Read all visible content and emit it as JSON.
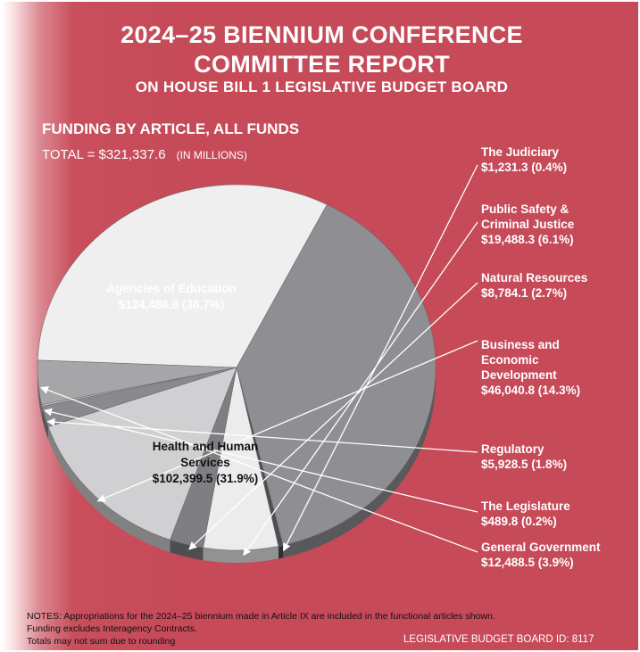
{
  "header": {
    "title_line1": "2024–25 BIENNIUM CONFERENCE",
    "title_line2": "COMMITTEE REPORT",
    "subtitle": "ON HOUSE BILL 1 LEGISLATIVE BUDGET BOARD"
  },
  "section_title": "FUNDING BY ARTICLE, ALL FUNDS",
  "total": {
    "label": "TOTAL = $321,337.6",
    "units": "(IN MILLIONS)"
  },
  "chart_data": {
    "type": "pie",
    "title": "FUNDING BY ARTICLE, ALL FUNDS",
    "units": "(IN MILLIONS)",
    "total": 321337.6,
    "slices": [
      {
        "label": "Agencies of Education",
        "value": 124486.8,
        "value_label": "$124,486.8 (38.7%)",
        "percent": 38.7,
        "color": "#8f8f93"
      },
      {
        "label": "The Judiciary",
        "value": 1231.3,
        "value_label": "$1,231.3 (0.4%)",
        "percent": 0.4,
        "color": "#4d4d52"
      },
      {
        "label": "Public Safety & Criminal Justice",
        "value": 19488.3,
        "value_label": "$19,488.3 (6.1%)",
        "percent": 6.1,
        "color": "#ececec"
      },
      {
        "label": "Natural Resources",
        "value": 8784.1,
        "value_label": "$8,784.1 (2.7%)",
        "percent": 2.7,
        "color": "#7e7e83"
      },
      {
        "label": "Business and Economic Development",
        "value": 46040.8,
        "value_label": "$46,040.8 (14.3%)",
        "percent": 14.3,
        "color": "#d0d0d2"
      },
      {
        "label": "Regulatory",
        "value": 5928.5,
        "value_label": "$5,928.5 (1.8%)",
        "percent": 1.8,
        "color": "#8a8a8e"
      },
      {
        "label": "The Legislature",
        "value": 489.8,
        "value_label": "$489.8 (0.2%)",
        "percent": 0.2,
        "color": "#c7c7ca"
      },
      {
        "label": "General Government",
        "value": 12488.5,
        "value_label": "$12,488.5 (3.9%)",
        "percent": 3.9,
        "color": "#a6a6a9"
      },
      {
        "label": "Health and Human Services",
        "value": 102399.5,
        "value_label": "$102,399.5 (31.9%)",
        "percent": 31.9,
        "color": "#efefef"
      }
    ]
  },
  "callouts": [
    {
      "lines": [
        "The Judiciary",
        "$1,231.3 (0.4%)"
      ]
    },
    {
      "lines": [
        "Public Safety &",
        "Criminal Justice",
        "$19,488.3 (6.1%)"
      ]
    },
    {
      "lines": [
        "Natural Resources",
        "$8,784.1 (2.7%)"
      ]
    },
    {
      "lines": [
        "Business and",
        "Economic",
        "Development",
        "$46,040.8 (14.3%)"
      ]
    },
    {
      "lines": [
        "Regulatory",
        "$5,928.5 (1.8%)"
      ]
    },
    {
      "lines": [
        "The Legislature",
        "$489.8 (0.2%)"
      ]
    },
    {
      "lines": [
        "General Government",
        "$12,488.5 (3.9%)"
      ]
    }
  ],
  "inside_labels": {
    "education": {
      "line1": "Agencies of Education",
      "line2": "$124,486.8 (38.7%)"
    },
    "hhs": {
      "line1": "Health and Human",
      "line2": "Services",
      "line3": "$102,399.5 (31.9%)"
    }
  },
  "notes": [
    "NOTES: Appropriations for the 2024–25 biennium made in Article IX are included in the functional articles shown.",
    "Funding excludes Interagency Contracts.",
    "Totals may not sum due to rounding"
  ],
  "footer": "LEGISLATIVE BUDGET BOARD ID: 8117"
}
